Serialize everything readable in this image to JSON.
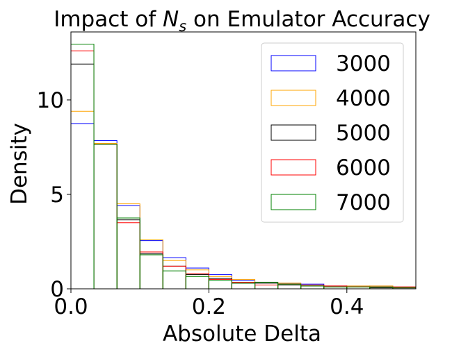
{
  "chart_data": {
    "type": "histogram",
    "title": "Impact of N_s on Emulator Accuracy",
    "title_parts": {
      "prefix": "Impact of ",
      "symbol": "N",
      "subscript": "s",
      "suffix": " on Emulator Accuracy"
    },
    "xlabel": "Absolute Delta",
    "ylabel": "Density",
    "xlim": [
      0,
      0.5
    ],
    "ylim": [
      0,
      13.6
    ],
    "xticks": [
      0.0,
      0.2,
      0.4
    ],
    "xtick_labels": [
      "0.0",
      "0.2",
      "0.4"
    ],
    "yticks": [
      0,
      5,
      10
    ],
    "ytick_labels": [
      "0",
      "5",
      "10"
    ],
    "legend_position": "upper-right",
    "bin_edges": [
      0,
      0.0333,
      0.0667,
      0.1,
      0.1333,
      0.1667,
      0.2,
      0.2333,
      0.2667,
      0.3,
      0.3333,
      0.3667,
      0.4,
      0.4333,
      0.4667,
      0.5
    ],
    "series": [
      {
        "name": "3000",
        "color": "#0000ff",
        "values": [
          8.75,
          7.85,
          4.4,
          2.55,
          1.65,
          1.1,
          0.75,
          0.45,
          0.35,
          0.3,
          0.25,
          0.15,
          0.15,
          0.15,
          0.1
        ]
      },
      {
        "name": "4000",
        "color": "#ffa500",
        "values": [
          9.4,
          7.7,
          4.5,
          2.6,
          1.5,
          1.0,
          0.65,
          0.5,
          0.35,
          0.3,
          0.2,
          0.15,
          0.15,
          0.15,
          0.1
        ]
      },
      {
        "name": "5000",
        "color": "#000000",
        "values": [
          11.9,
          7.65,
          3.65,
          1.85,
          1.2,
          0.75,
          0.55,
          0.3,
          0.3,
          0.2,
          0.15,
          0.1,
          0.1,
          0.05,
          0.05
        ]
      },
      {
        "name": "6000",
        "color": "#ff0000",
        "values": [
          12.6,
          7.65,
          3.5,
          1.95,
          1.2,
          0.8,
          0.5,
          0.35,
          0.2,
          0.25,
          0.2,
          0.15,
          0.1,
          0.1,
          0.1
        ]
      },
      {
        "name": "7000",
        "color": "#008000",
        "values": [
          12.95,
          7.65,
          3.75,
          1.8,
          0.95,
          0.65,
          0.45,
          0.3,
          0.35,
          0.25,
          0.15,
          0.1,
          0.1,
          0.1,
          0.05
        ]
      }
    ]
  }
}
